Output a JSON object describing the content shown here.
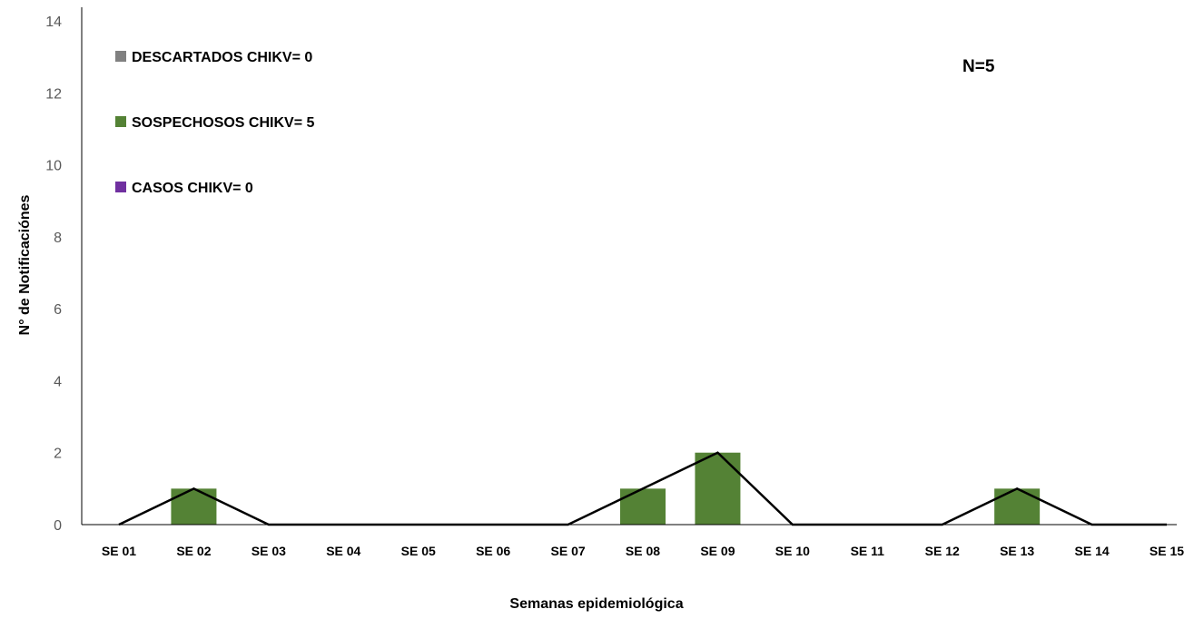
{
  "chart_data": {
    "type": "bar",
    "title": "",
    "xlabel": "Semanas epidemiológica",
    "ylabel": "N° de Notificaciónes",
    "ylim": [
      0,
      14
    ],
    "yticks": [
      0,
      2,
      4,
      6,
      8,
      10,
      12,
      14
    ],
    "grid": false,
    "legend_position": "top-left",
    "categories": [
      "SE 01",
      "SE 02",
      "SE 03",
      "SE 04",
      "SE 05",
      "SE 06",
      "SE 07",
      "SE 08",
      "SE 09",
      "SE 10",
      "SE 11",
      "SE 12",
      "SE 13",
      "SE 14",
      "SE 15"
    ],
    "series": [
      {
        "name": "DESCARTADOS CHIKV= 0",
        "type": "bar",
        "color": "#808080",
        "values": [
          0,
          0,
          0,
          0,
          0,
          0,
          0,
          0,
          0,
          0,
          0,
          0,
          0,
          0,
          0
        ]
      },
      {
        "name": "SOSPECHOSOS CHIKV= 5",
        "type": "bar",
        "color": "#548235",
        "values": [
          0,
          1,
          0,
          0,
          0,
          0,
          0,
          1,
          2,
          0,
          0,
          0,
          1,
          0,
          0
        ]
      },
      {
        "name": "CASOS CHIKV= 0",
        "type": "bar",
        "color": "#7030A0",
        "values": [
          0,
          0,
          0,
          0,
          0,
          0,
          0,
          0,
          0,
          0,
          0,
          0,
          0,
          0,
          0
        ]
      },
      {
        "type": "line",
        "color": "#000000",
        "values": [
          0,
          1,
          0,
          0,
          0,
          0,
          0,
          1,
          2,
          0,
          0,
          0,
          1,
          0,
          0
        ]
      }
    ],
    "annotation": "N=5"
  }
}
